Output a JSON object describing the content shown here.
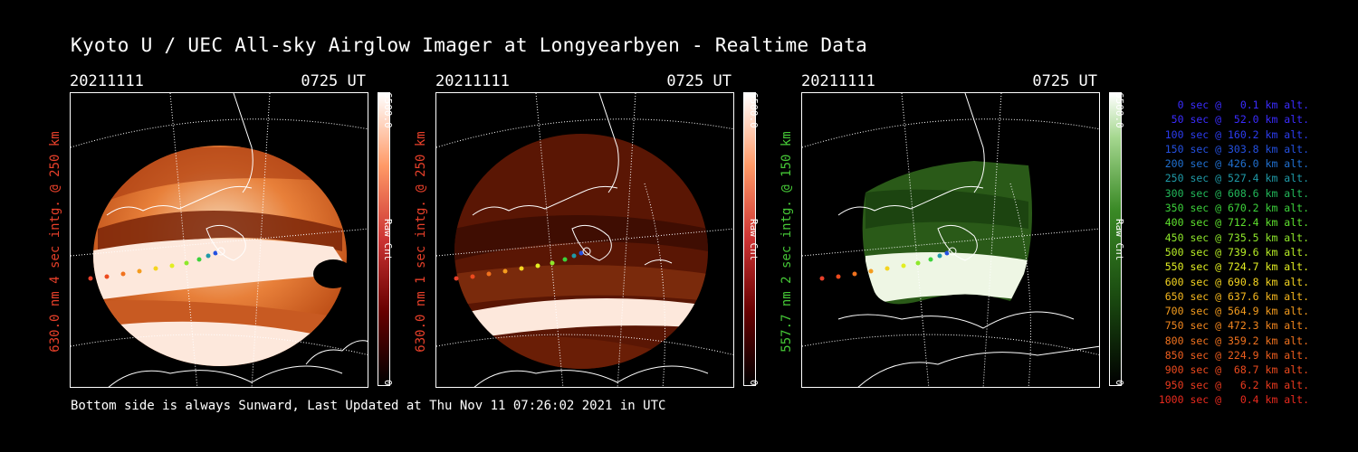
{
  "title": "Kyoto U / UEC All-sky Airglow Imager at Longyearbyen - Realtime Data",
  "footer": "Bottom side is always Sunward, Last Updated at Thu Nov 11 07:26:02 2021 in UTC",
  "panels": [
    {
      "date": "20211111",
      "time": "0725 UT",
      "label": "630.0 nm 4 sec intg. @ 250 km",
      "colorbar_max": "6500.0",
      "colorbar_min": "0",
      "colorbar_unit": "Raw Cnt",
      "label_color": "#e8402a",
      "palette": "red-hot"
    },
    {
      "date": "20211111",
      "time": "0725 UT",
      "label": "630.0 nm 1 sec intg. @ 250 km",
      "colorbar_max": "6500.0",
      "colorbar_min": "0",
      "colorbar_unit": "Raw Cnt",
      "label_color": "#e8402a",
      "palette": "red-dark"
    },
    {
      "date": "20211111",
      "time": "0725 UT",
      "label": "557.7 nm 2 sec intg. @ 150 km",
      "colorbar_max": "6500.0",
      "colorbar_min": "0",
      "colorbar_unit": "Raw Cnt",
      "label_color": "#46c837",
      "palette": "green"
    }
  ],
  "legend": [
    {
      "text": "0 sec @   0.1 km alt.",
      "color": "#3a2cff"
    },
    {
      "text": "50 sec @  52.0 km alt.",
      "color": "#3a2cff"
    },
    {
      "text": "100 sec @ 160.2 km alt.",
      "color": "#2c3cf0"
    },
    {
      "text": "150 sec @ 303.8 km alt.",
      "color": "#2450e0"
    },
    {
      "text": "200 sec @ 426.0 km alt.",
      "color": "#2070d0"
    },
    {
      "text": "250 sec @ 527.4 km alt.",
      "color": "#1f9aa8"
    },
    {
      "text": "300 sec @ 608.6 km alt.",
      "color": "#22b85a"
    },
    {
      "text": "350 sec @ 670.2 km alt.",
      "color": "#3cd23a"
    },
    {
      "text": "400 sec @ 712.4 km alt.",
      "color": "#5ee02e"
    },
    {
      "text": "450 sec @ 735.5 km alt.",
      "color": "#8ee82a"
    },
    {
      "text": "500 sec @ 739.6 km alt.",
      "color": "#b8ee26"
    },
    {
      "text": "550 sec @ 724.7 km alt.",
      "color": "#e2ee22"
    },
    {
      "text": "600 sec @ 690.8 km alt.",
      "color": "#f4d420"
    },
    {
      "text": "650 sec @ 637.6 km alt.",
      "color": "#f6b81e"
    },
    {
      "text": "700 sec @ 564.9 km alt.",
      "color": "#f49c1e"
    },
    {
      "text": "750 sec @ 472.3 km alt.",
      "color": "#f2861e"
    },
    {
      "text": "800 sec @ 359.2 km alt.",
      "color": "#f0721e"
    },
    {
      "text": "850 sec @ 224.9 km alt.",
      "color": "#ee5e1e"
    },
    {
      "text": "900 sec @  68.7 km alt.",
      "color": "#ec4a1e"
    },
    {
      "text": "950 sec @   6.2 km alt.",
      "color": "#ea3a1e"
    },
    {
      "text": "1000 sec @   0.4 km alt.",
      "color": "#e82a1e"
    }
  ]
}
